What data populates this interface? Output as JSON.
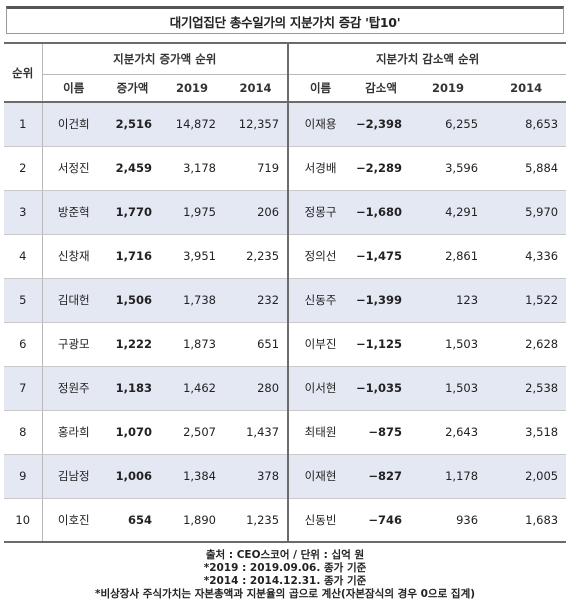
{
  "title": "대기업집단 총수일가의 지분가치 증감 '탑10'",
  "header": {
    "rank": "순위",
    "increase_group": "지분가치 증가액 순위",
    "decrease_group": "지분가치 감소액 순위",
    "name": "이름",
    "increase": "증가액",
    "decrease": "감소액",
    "y2019": "2019",
    "y2014": "2014"
  },
  "rows": [
    {
      "rank": "1",
      "inc_name": "이건희",
      "inc_amt": "2,516",
      "inc_2019": "14,872",
      "inc_2014": "12,357",
      "dec_name": "이재용",
      "dec_amt": "−2,398",
      "dec_2019": "6,255",
      "dec_2014": "8,653"
    },
    {
      "rank": "2",
      "inc_name": "서정진",
      "inc_amt": "2,459",
      "inc_2019": "3,178",
      "inc_2014": "719",
      "dec_name": "서경배",
      "dec_amt": "−2,289",
      "dec_2019": "3,596",
      "dec_2014": "5,884"
    },
    {
      "rank": "3",
      "inc_name": "방준혁",
      "inc_amt": "1,770",
      "inc_2019": "1,975",
      "inc_2014": "206",
      "dec_name": "정몽구",
      "dec_amt": "−1,680",
      "dec_2019": "4,291",
      "dec_2014": "5,970"
    },
    {
      "rank": "4",
      "inc_name": "신창재",
      "inc_amt": "1,716",
      "inc_2019": "3,951",
      "inc_2014": "2,235",
      "dec_name": "정의선",
      "dec_amt": "−1,475",
      "dec_2019": "2,861",
      "dec_2014": "4,336"
    },
    {
      "rank": "5",
      "inc_name": "김대헌",
      "inc_amt": "1,506",
      "inc_2019": "1,738",
      "inc_2014": "232",
      "dec_name": "신동주",
      "dec_amt": "−1,399",
      "dec_2019": "123",
      "dec_2014": "1,522"
    },
    {
      "rank": "6",
      "inc_name": "구광모",
      "inc_amt": "1,222",
      "inc_2019": "1,873",
      "inc_2014": "651",
      "dec_name": "이부진",
      "dec_amt": "−1,125",
      "dec_2019": "1,503",
      "dec_2014": "2,628"
    },
    {
      "rank": "7",
      "inc_name": "정원주",
      "inc_amt": "1,183",
      "inc_2019": "1,462",
      "inc_2014": "280",
      "dec_name": "이서현",
      "dec_amt": "−1,035",
      "dec_2019": "1,503",
      "dec_2014": "2,538"
    },
    {
      "rank": "8",
      "inc_name": "홍라희",
      "inc_amt": "1,070",
      "inc_2019": "2,507",
      "inc_2014": "1,437",
      "dec_name": "최태원",
      "dec_amt": "−875",
      "dec_2019": "2,643",
      "dec_2014": "3,518"
    },
    {
      "rank": "9",
      "inc_name": "김남정",
      "inc_amt": "1,006",
      "inc_2019": "1,384",
      "inc_2014": "378",
      "dec_name": "이재현",
      "dec_amt": "−827",
      "dec_2019": "1,178",
      "dec_2014": "2,005"
    },
    {
      "rank": "10",
      "inc_name": "이호진",
      "inc_amt": "654",
      "inc_2019": "1,890",
      "inc_2014": "1,235",
      "dec_name": "신동빈",
      "dec_amt": "−746",
      "dec_2019": "936",
      "dec_2014": "1,683"
    }
  ],
  "footer": {
    "source": "출처 : CEO스코어 / 단위 : 십억 원",
    "note1": "*2019 : 2019.09.06. 종가 기준",
    "note2": "*2014 : 2014.12.31. 종가 기준",
    "note3": "*비상장사 주식가치는 자본총액과 지분율의 곱으로 계산(자본잠식의 경우 0으로 집계)"
  }
}
